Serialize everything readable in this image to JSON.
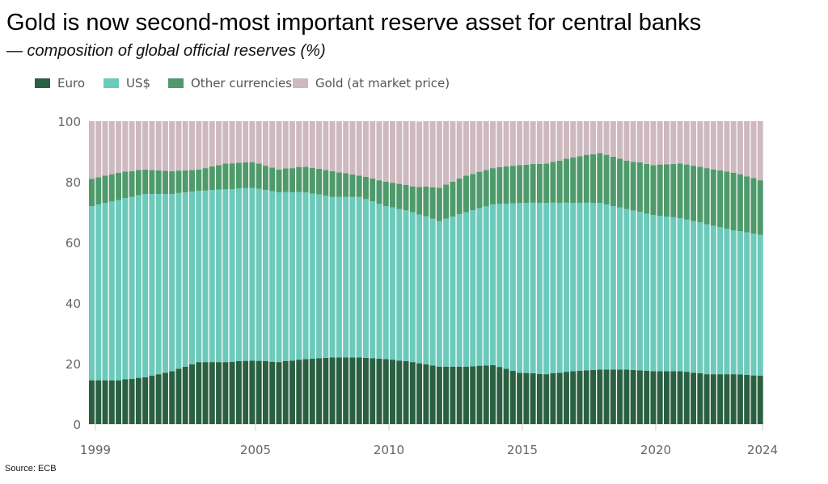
{
  "chart_data": {
    "type": "bar",
    "stacked": true,
    "title": "Gold is now second-most important reserve asset for central banks",
    "subtitle": "— composition of global official reserves (%)",
    "source": "Source: ECB",
    "xlabel": "",
    "ylabel": "",
    "frequency": "quarterly, 1999 Q1 onward",
    "ylim": [
      0,
      100
    ],
    "yticks": [
      "0",
      "20",
      "40",
      "60",
      "80",
      "100"
    ],
    "xticks": [
      "1999",
      "2005",
      "2010",
      "2015",
      "2020",
      "2024"
    ],
    "legend_position": "top-left",
    "grid": false,
    "series": [
      {
        "name": "Euro",
        "color": "#2a6041",
        "values": [
          14.5,
          14.5,
          14.5,
          14.5,
          14.5,
          14.8,
          15,
          15.3,
          15.5,
          16,
          16.5,
          17,
          17.5,
          18.3,
          19,
          19.8,
          20.5,
          20.5,
          20.5,
          20.5,
          20.5,
          20.6,
          20.8,
          20.9,
          21,
          20.9,
          20.8,
          20.6,
          20.5,
          20.8,
          21,
          21.3,
          21.5,
          21.6,
          21.8,
          21.9,
          22,
          22,
          22,
          22,
          22,
          21.9,
          21.8,
          21.6,
          21.5,
          21.3,
          21,
          20.8,
          20.5,
          20.1,
          19.8,
          19.4,
          19,
          19,
          19,
          19,
          19,
          19.1,
          19.3,
          19.4,
          19.5,
          18.9,
          18.3,
          17.6,
          17,
          16.9,
          16.8,
          16.6,
          16.5,
          16.8,
          17,
          17.3,
          17.5,
          17.6,
          17.8,
          17.9,
          18,
          18,
          18,
          18,
          18,
          17.9,
          17.8,
          17.6,
          17.5,
          17.5,
          17.5,
          17.5,
          17.5,
          17.3,
          17,
          16.8,
          16.5,
          16.5,
          16.5,
          16.5,
          16.5,
          16.4,
          16.3,
          16.1,
          16
        ]
      },
      {
        "name": "US$",
        "color": "#6ccabb",
        "values": [
          57.5,
          58,
          58.5,
          59,
          59.5,
          59.8,
          60,
          60.3,
          60.5,
          60,
          59.5,
          59,
          58.5,
          58,
          57.5,
          57,
          56.5,
          56.6,
          56.8,
          56.9,
          57,
          57,
          57,
          57,
          57,
          56.8,
          56.5,
          56.3,
          56,
          55.8,
          55.5,
          55.3,
          55,
          54.5,
          54,
          53.5,
          53,
          53,
          53,
          53,
          53,
          52.4,
          51.8,
          51.1,
          50.5,
          50.3,
          50,
          49.8,
          49.5,
          49.1,
          48.8,
          48.4,
          48,
          48.8,
          49.5,
          50.3,
          51,
          51.5,
          52,
          52.5,
          53,
          53.8,
          54.5,
          55.3,
          56,
          56.1,
          56.3,
          56.4,
          56.5,
          56.3,
          56,
          55.8,
          55.5,
          55.4,
          55.3,
          55.1,
          55,
          54.5,
          54,
          53.5,
          53,
          52.6,
          52.3,
          51.9,
          51.5,
          51.3,
          51,
          50.8,
          50.5,
          50.3,
          50,
          49.8,
          49.5,
          49,
          48.5,
          48,
          47.5,
          47.3,
          47,
          46.8,
          46.5
        ]
      },
      {
        "name": "Other currencies",
        "color": "#4f9a6b",
        "values": [
          9,
          9,
          9,
          9,
          9,
          8.8,
          8.5,
          8.3,
          8,
          7.9,
          7.8,
          7.6,
          7.5,
          7.4,
          7.3,
          7.1,
          7,
          7.4,
          7.8,
          8.1,
          8.5,
          8.5,
          8.5,
          8.5,
          8.5,
          8.3,
          8,
          7.8,
          7.5,
          7.8,
          8,
          8.3,
          8.5,
          8.5,
          8.5,
          8.5,
          8.5,
          8.1,
          7.8,
          7.4,
          7,
          7.3,
          7.5,
          7.8,
          8,
          8.1,
          8.3,
          8.4,
          8.5,
          9.1,
          9.8,
          10.4,
          11,
          11.3,
          11.5,
          11.8,
          12,
          12,
          12,
          12,
          12,
          12.1,
          12.3,
          12.4,
          12.5,
          12.6,
          12.8,
          12.9,
          13,
          13.5,
          14,
          14.5,
          15,
          15.4,
          15.8,
          16.1,
          16.5,
          16.4,
          16.3,
          16.1,
          16,
          16.1,
          16.3,
          16.4,
          16.5,
          16.9,
          17.3,
          17.6,
          18,
          18.1,
          18.3,
          18.4,
          18.5,
          18.6,
          18.8,
          18.9,
          19,
          18.8,
          18.5,
          18.3,
          18
        ]
      },
      {
        "name": "Gold (at market price)",
        "color": "#cdb9bf",
        "values": [
          19,
          18.5,
          18,
          17.5,
          17,
          16.8,
          16.5,
          16.3,
          16,
          16.1,
          16.3,
          16.4,
          16.5,
          16.4,
          16.3,
          16.1,
          16,
          15.5,
          15,
          14.5,
          14,
          13.9,
          13.8,
          13.6,
          13.5,
          14.1,
          14.8,
          15.4,
          16,
          15.8,
          15.5,
          15.3,
          15,
          15.4,
          15.8,
          16.1,
          16.5,
          16.9,
          17.3,
          17.6,
          18,
          18.5,
          19,
          19.5,
          20,
          20.4,
          20.8,
          21.1,
          21.5,
          21.6,
          21.8,
          21.9,
          22,
          21,
          20,
          19,
          18,
          17.4,
          16.8,
          16.1,
          15.5,
          15.3,
          15,
          14.8,
          14.5,
          14.4,
          14.3,
          14.1,
          14,
          13.5,
          13,
          12.5,
          12,
          11.6,
          11.3,
          10.9,
          10.5,
          11.1,
          11.8,
          12.4,
          13,
          13.4,
          13.8,
          14.1,
          14.5,
          14.4,
          14.3,
          14.1,
          14,
          14.4,
          14.8,
          15.1,
          15.5,
          15.9,
          16.3,
          16.6,
          17,
          17.6,
          18.3,
          18.9,
          19.5
        ]
      }
    ]
  }
}
